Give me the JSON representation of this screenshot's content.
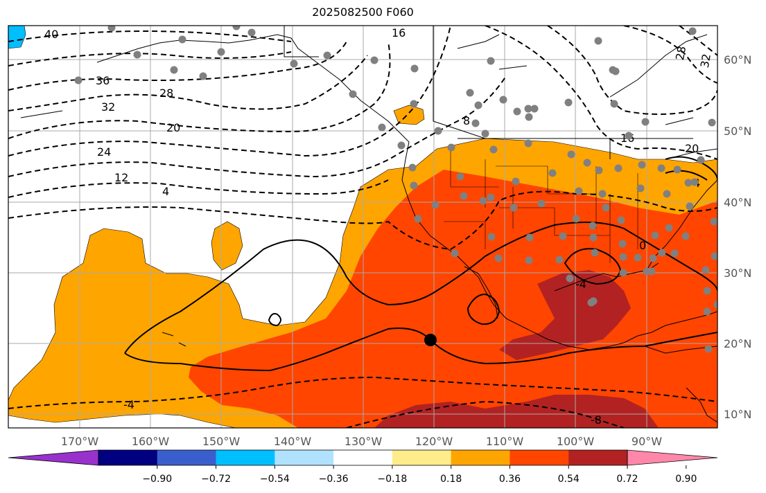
{
  "title": "2025082500 F060",
  "map": {
    "lon_ticks": [
      "170°W",
      "160°W",
      "150°W",
      "140°W",
      "130°W",
      "120°W",
      "110°W",
      "100°W",
      "90°W"
    ],
    "lat_ticks": [
      "60°N",
      "50°N",
      "40°N",
      "30°N",
      "20°N",
      "10°N"
    ],
    "contour_labels": [
      "40",
      "36",
      "32",
      "28",
      "24",
      "20",
      "16",
      "12",
      "8",
      "4",
      "0",
      "-4",
      "-4",
      "-8",
      "16",
      "20",
      "28",
      "32",
      "4"
    ],
    "shading_colors": {
      "light_orange": "#ffa500",
      "orange": "#ff8c00",
      "red_orange": "#ff4500",
      "dark_red": "#b22222",
      "yellow": "#fff08c",
      "cyan": "#00bfff"
    }
  },
  "colorbar": {
    "colors": [
      "#9932cc",
      "#000080",
      "#3a5fcd",
      "#00bfff",
      "#b0e2ff",
      "#ffffff",
      "#ffec8b",
      "#ffa500",
      "#ff4500",
      "#b22222",
      "#ff88aa"
    ],
    "tick_labels": [
      "−0.90",
      "−0.72",
      "−0.54",
      "−0.36",
      "−0.18",
      "0.18",
      "0.36",
      "0.54",
      "0.72",
      "0.90"
    ]
  }
}
